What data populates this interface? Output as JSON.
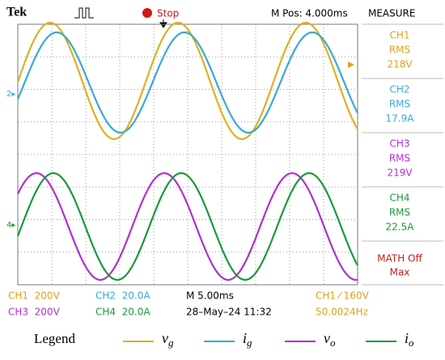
{
  "header": {
    "brand": "Tek",
    "status": "Stop",
    "position": "M Pos: 4.000ms",
    "panel_title": "MEASURE"
  },
  "measurements": [
    {
      "channel": "CH1",
      "type": "RMS",
      "value": "218V"
    },
    {
      "channel": "CH2",
      "type": "RMS",
      "value": "17.9A"
    },
    {
      "channel": "CH3",
      "type": "RMS",
      "value": "219V"
    },
    {
      "channel": "CH4",
      "type": "RMS",
      "value": "22.5A"
    }
  ],
  "math": {
    "label": "MATH Off",
    "sub": "Max"
  },
  "footer": {
    "ch1": "CH1  200V",
    "ch2": "CH2  20.0A",
    "ch3": "CH3  200V",
    "ch4": "CH4  20.0A",
    "timebase": "M 5.00ms",
    "datetime": "28–May–24 11:32",
    "trigger": "CH1 ⁄ 160V",
    "frequency": "50.0024Hz"
  },
  "legend": {
    "title": "Legend",
    "items": [
      {
        "symbol": "v",
        "subscript": "g"
      },
      {
        "symbol": "i",
        "subscript": "g"
      },
      {
        "symbol": "v",
        "subscript": "o"
      },
      {
        "symbol": "i",
        "subscript": "o"
      }
    ]
  }
}
